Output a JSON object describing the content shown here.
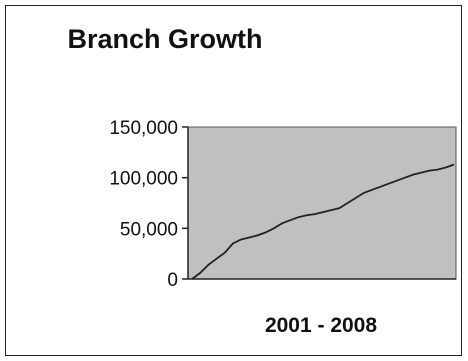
{
  "chart_data": {
    "type": "line",
    "title": "Branch Growth",
    "xlabel": "2001 - 2008",
    "ylabel": "",
    "ylim": [
      0,
      150000
    ],
    "y_ticks": [
      "150,000",
      "100,000",
      "50,000",
      "0"
    ],
    "y_tick_values": [
      150000,
      100000,
      50000,
      0
    ],
    "grid": false,
    "plot_background": "#c0c0c0",
    "series": [
      {
        "values": [
          0,
          6000,
          14000,
          20000,
          26000,
          35000,
          39000,
          41000,
          43000,
          46000,
          50000,
          55000,
          58000,
          61000,
          63000,
          64000,
          66000,
          68000,
          70000,
          75000,
          80000,
          85000,
          88000,
          91000,
          94000,
          97000,
          100000,
          103000,
          105000,
          107000,
          108000,
          110000,
          113000
        ]
      }
    ]
  }
}
